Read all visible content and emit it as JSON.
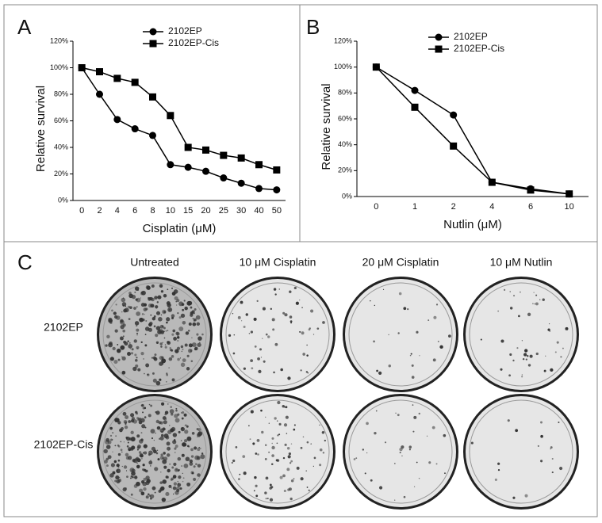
{
  "chart_data": [
    {
      "type": "line",
      "panel_label": "A",
      "x_label": "Cisplatin (μM)",
      "y_label": "Relative survival",
      "categories": [
        "0",
        "2",
        "4",
        "6",
        "8",
        "10",
        "15",
        "20",
        "25",
        "30",
        "40",
        "50"
      ],
      "series": [
        {
          "name": "2102EP",
          "color": "#000000",
          "marker": "circle",
          "values": [
            100,
            80,
            61,
            54,
            49,
            27,
            25,
            22,
            17,
            13,
            9,
            8
          ]
        },
        {
          "name": "2102EP-Cis",
          "color": "#000000",
          "marker": "square",
          "values": [
            100,
            97,
            92,
            89,
            78,
            64,
            40,
            38,
            34,
            32,
            27,
            23
          ]
        }
      ],
      "ylim": [
        0,
        120
      ],
      "yticks": [
        {
          "value": 0,
          "label": "0%"
        },
        {
          "value": 20,
          "label": "20%"
        },
        {
          "value": 40,
          "label": "40%"
        },
        {
          "value": 60,
          "label": "60%"
        },
        {
          "value": 80,
          "label": "80%"
        },
        {
          "value": 100,
          "label": "100%"
        },
        {
          "value": 120,
          "label": "120%"
        }
      ]
    },
    {
      "type": "line",
      "panel_label": "B",
      "x_label": "Nutlin (μM)",
      "y_label": "Relative survival",
      "categories": [
        "0",
        "1",
        "2",
        "4",
        "6",
        "10"
      ],
      "series": [
        {
          "name": "2102EP",
          "color": "#000000",
          "marker": "circle",
          "values": [
            100,
            82,
            63,
            11,
            6,
            2
          ]
        },
        {
          "name": "2102EP-Cis",
          "color": "#000000",
          "marker": "square",
          "values": [
            100,
            69,
            39,
            11,
            5,
            2
          ]
        }
      ],
      "ylim": [
        0,
        120
      ],
      "yticks": [
        {
          "value": 0,
          "label": "0%"
        },
        {
          "value": 20,
          "label": "20%"
        },
        {
          "value": 40,
          "label": "40%"
        },
        {
          "value": 60,
          "label": "60%"
        },
        {
          "value": 80,
          "label": "80%"
        },
        {
          "value": 100,
          "label": "100%"
        },
        {
          "value": 120,
          "label": "120%"
        }
      ]
    }
  ],
  "panel_c": {
    "panel_label": "C",
    "columns": [
      "Untreated",
      "10 μM Cisplatin",
      "20 μM Cisplatin",
      "10 μM Nutlin"
    ],
    "rows": [
      "2102EP",
      "2102EP-Cis"
    ]
  }
}
